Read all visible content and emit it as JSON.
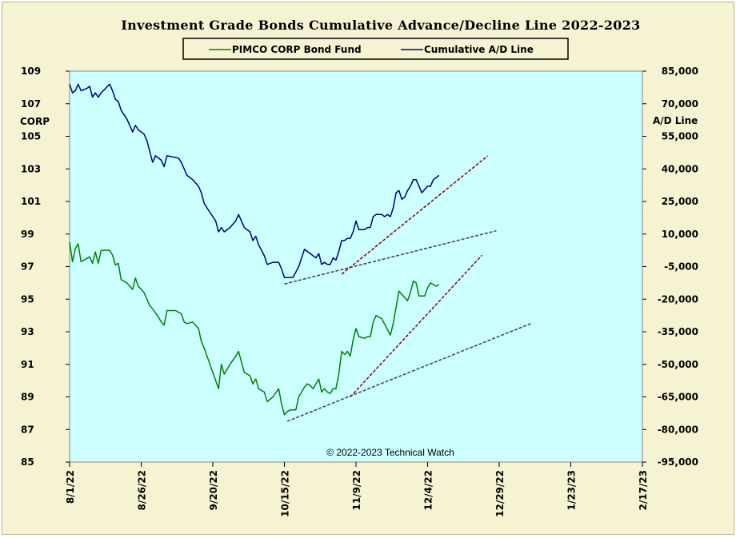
{
  "chart_data": {
    "type": "line",
    "title": "Investment  Grade  Bonds  Cumulative  Advance/Decline  Line  2022-2023",
    "left_axis": {
      "label": "CORP",
      "ylim": [
        85,
        109
      ],
      "ticks": [
        "85",
        "87",
        "89",
        "91",
        "93",
        "95",
        "97",
        "99",
        "101",
        "103",
        "105",
        "107",
        "109"
      ]
    },
    "right_axis": {
      "label": "A/D Line",
      "ylim": [
        -95000,
        85000
      ],
      "ticks": [
        "-95,000",
        "-80,000",
        "-65,000",
        "-50,000",
        "-35,000",
        "-20,000",
        "-5,000",
        "10,000",
        "25,000",
        "40,000",
        "55,000",
        "70,000",
        "85,000"
      ]
    },
    "x_axis": {
      "ticks": [
        "8/1/22",
        "8/26/22",
        "9/20/22",
        "10/15/22",
        "11/9/22",
        "12/4/22",
        "12/29/22",
        "1/23/23",
        "2/17/23"
      ],
      "xlim_days": [
        0,
        200
      ]
    },
    "legend_position": "top-center",
    "copyright": "© 2022-2023  Technical  Watch",
    "colors": {
      "plot_bg": "#ccffff",
      "frame_bg": "#f6f3d2",
      "fund": "#008000",
      "ad": "#000080",
      "trend_red": "#8b0000",
      "trend_gray": "#404040",
      "trend_purple": "#800040"
    },
    "series": [
      {
        "name": "PIMCO CORP Bond Fund",
        "axis": "left",
        "points": [
          [
            0,
            98.5
          ],
          [
            1,
            97.3
          ],
          [
            2,
            98.1
          ],
          [
            3,
            98.4
          ],
          [
            4,
            97.3
          ],
          [
            6,
            97.5
          ],
          [
            7,
            97.6
          ],
          [
            8,
            97.2
          ],
          [
            9,
            97.9
          ],
          [
            10,
            97.2
          ],
          [
            11,
            98.0
          ],
          [
            14,
            98.0
          ],
          [
            15,
            97.7
          ],
          [
            16,
            97.1
          ],
          [
            17,
            97.2
          ],
          [
            18,
            96.2
          ],
          [
            20,
            96.0
          ],
          [
            21,
            95.8
          ],
          [
            22,
            95.6
          ],
          [
            23,
            96.3
          ],
          [
            24,
            95.8
          ],
          [
            25,
            95.6
          ],
          [
            26,
            95.4
          ],
          [
            27,
            95.0
          ],
          [
            28,
            94.6
          ],
          [
            29,
            94.4
          ],
          [
            31,
            93.9
          ],
          [
            32,
            93.6
          ],
          [
            33,
            93.4
          ],
          [
            34,
            94.3
          ],
          [
            37,
            94.3
          ],
          [
            38,
            94.2
          ],
          [
            39,
            94.1
          ],
          [
            40,
            93.6
          ],
          [
            41,
            93.5
          ],
          [
            43,
            93.6
          ],
          [
            45,
            93.2
          ],
          [
            46,
            92.4
          ],
          [
            47,
            92.0
          ],
          [
            49,
            91.0
          ],
          [
            50,
            90.5
          ],
          [
            52,
            89.5
          ],
          [
            53,
            91.0
          ],
          [
            54,
            90.4
          ],
          [
            56,
            91.0
          ],
          [
            58,
            91.5
          ],
          [
            59,
            91.8
          ],
          [
            61,
            90.5
          ],
          [
            63,
            90.3
          ],
          [
            64,
            89.8
          ],
          [
            65,
            90.1
          ],
          [
            66,
            89.5
          ],
          [
            68,
            89.3
          ],
          [
            69,
            88.7
          ],
          [
            71,
            89.0
          ],
          [
            73,
            89.5
          ],
          [
            74,
            88.6
          ],
          [
            75,
            87.9
          ],
          [
            76,
            88.1
          ],
          [
            77,
            88.2
          ],
          [
            79,
            88.2
          ],
          [
            80,
            89.0
          ],
          [
            82,
            89.6
          ],
          [
            83,
            89.8
          ],
          [
            84,
            89.7
          ],
          [
            85,
            89.5
          ],
          [
            86,
            89.8
          ],
          [
            87,
            90.1
          ],
          [
            88,
            89.3
          ],
          [
            89,
            89.5
          ],
          [
            90,
            89.3
          ],
          [
            91,
            89.2
          ],
          [
            92,
            89.5
          ],
          [
            93,
            89.5
          ],
          [
            94,
            90.4
          ],
          [
            95,
            91.8
          ],
          [
            96,
            91.6
          ],
          [
            97,
            91.8
          ],
          [
            98,
            91.5
          ],
          [
            99,
            92.5
          ],
          [
            100,
            93.2
          ],
          [
            101,
            92.7
          ],
          [
            103,
            92.6
          ],
          [
            104,
            92.7
          ],
          [
            105,
            92.7
          ],
          [
            106,
            93.6
          ],
          [
            107,
            94.0
          ],
          [
            109,
            93.8
          ],
          [
            112,
            92.8
          ],
          [
            113,
            93.5
          ],
          [
            114,
            94.5
          ],
          [
            115,
            95.5
          ],
          [
            117,
            95.1
          ],
          [
            118,
            94.9
          ],
          [
            119,
            95.4
          ],
          [
            120,
            96.1
          ],
          [
            121,
            96.0
          ],
          [
            122,
            95.2
          ],
          [
            124,
            95.2
          ],
          [
            125,
            95.7
          ],
          [
            126,
            96.0
          ],
          [
            127,
            95.9
          ],
          [
            128,
            95.8
          ],
          [
            129,
            95.9
          ]
        ]
      },
      {
        "name": "Cumulative A/D Line",
        "axis": "right",
        "points": [
          [
            0,
            79000
          ],
          [
            1,
            75000
          ],
          [
            2,
            76000
          ],
          [
            3,
            79000
          ],
          [
            4,
            76000
          ],
          [
            6,
            77000
          ],
          [
            7,
            78000
          ],
          [
            8,
            73000
          ],
          [
            9,
            75000
          ],
          [
            10,
            73000
          ],
          [
            11,
            75000
          ],
          [
            14,
            79000
          ],
          [
            15,
            76000
          ],
          [
            16,
            72000
          ],
          [
            17,
            71000
          ],
          [
            18,
            67000
          ],
          [
            20,
            63000
          ],
          [
            21,
            60000
          ],
          [
            22,
            57000
          ],
          [
            23,
            60000
          ],
          [
            24,
            58000
          ],
          [
            26,
            56000
          ],
          [
            27,
            53000
          ],
          [
            28,
            48000
          ],
          [
            29,
            43000
          ],
          [
            30,
            46000
          ],
          [
            32,
            44000
          ],
          [
            33,
            41000
          ],
          [
            34,
            46000
          ],
          [
            38,
            45000
          ],
          [
            39,
            43000
          ],
          [
            40,
            40000
          ],
          [
            41,
            37000
          ],
          [
            43,
            35000
          ],
          [
            45,
            32000
          ],
          [
            46,
            29000
          ],
          [
            47,
            24000
          ],
          [
            49,
            20000
          ],
          [
            50,
            18000
          ],
          [
            51,
            16000
          ],
          [
            52,
            11000
          ],
          [
            53,
            13000
          ],
          [
            54,
            11000
          ],
          [
            56,
            13000
          ],
          [
            58,
            16000
          ],
          [
            59,
            19000
          ],
          [
            61,
            13000
          ],
          [
            63,
            11000
          ],
          [
            64,
            7000
          ],
          [
            65,
            9000
          ],
          [
            66,
            5000
          ],
          [
            68,
            0
          ],
          [
            69,
            -4000
          ],
          [
            71,
            -3000
          ],
          [
            73,
            -3000
          ],
          [
            74,
            -6000
          ],
          [
            75,
            -10000
          ],
          [
            76,
            -10000
          ],
          [
            78,
            -10000
          ],
          [
            80,
            -5000
          ],
          [
            82,
            3000
          ],
          [
            83,
            2000
          ],
          [
            85,
            0
          ],
          [
            86,
            -1000
          ],
          [
            87,
            1000
          ],
          [
            88,
            -4000
          ],
          [
            89,
            -3000
          ],
          [
            90,
            -4000
          ],
          [
            91,
            -4000
          ],
          [
            92,
            -1000
          ],
          [
            93,
            -2000
          ],
          [
            94,
            2000
          ],
          [
            95,
            7000
          ],
          [
            96,
            7000
          ],
          [
            97,
            8000
          ],
          [
            98,
            8000
          ],
          [
            99,
            11000
          ],
          [
            100,
            16000
          ],
          [
            101,
            12000
          ],
          [
            103,
            12000
          ],
          [
            104,
            13000
          ],
          [
            105,
            13000
          ],
          [
            106,
            18000
          ],
          [
            107,
            19000
          ],
          [
            109,
            19000
          ],
          [
            110,
            18000
          ],
          [
            111,
            19000
          ],
          [
            112,
            18000
          ],
          [
            113,
            22000
          ],
          [
            114,
            29000
          ],
          [
            115,
            30000
          ],
          [
            116,
            26000
          ],
          [
            117,
            27000
          ],
          [
            118,
            30000
          ],
          [
            119,
            32000
          ],
          [
            120,
            35000
          ],
          [
            121,
            35000
          ],
          [
            123,
            29000
          ],
          [
            125,
            32000
          ],
          [
            126,
            32000
          ],
          [
            127,
            35000
          ],
          [
            128,
            36000
          ],
          [
            129,
            37000
          ]
        ]
      }
    ],
    "trendlines": [
      {
        "axis": "right",
        "color": "trend_red",
        "points": [
          [
            95,
            -8500
          ],
          [
            146,
            46000
          ]
        ]
      },
      {
        "axis": "right",
        "color": "trend_gray",
        "points": [
          [
            75,
            -13000
          ],
          [
            149,
            11500
          ]
        ]
      },
      {
        "axis": "left",
        "color": "trend_purple",
        "points": [
          [
            98,
            89.0
          ],
          [
            144,
            97.7
          ]
        ]
      },
      {
        "axis": "left",
        "color": "trend_gray",
        "points": [
          [
            76,
            87.5
          ],
          [
            161,
            93.5
          ]
        ]
      }
    ]
  }
}
